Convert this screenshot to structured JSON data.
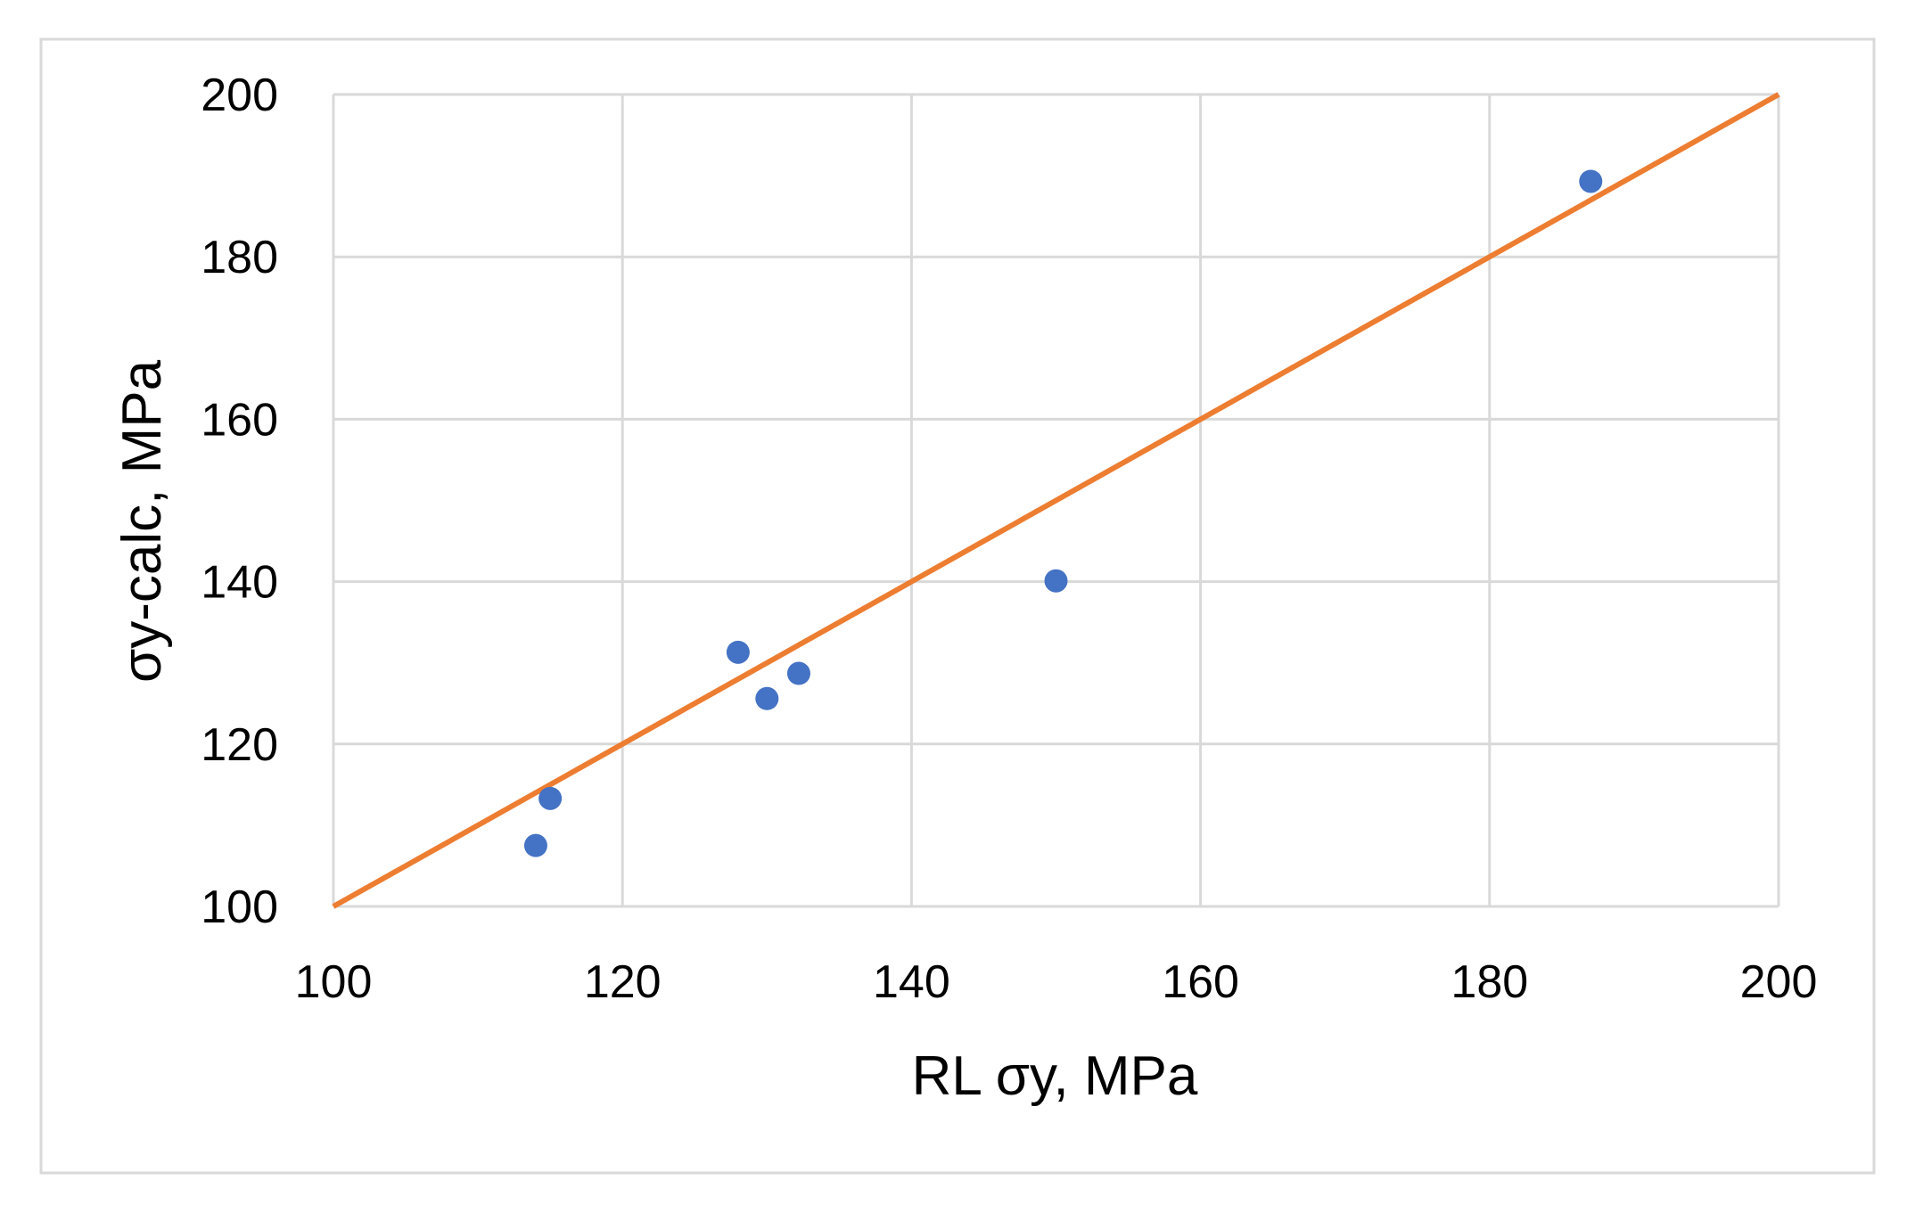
{
  "chart_data": {
    "type": "scatter",
    "title": "",
    "xlabel": "RL σy, MPa",
    "ylabel": "σy-calc, MPa",
    "xlim": [
      100,
      200
    ],
    "ylim": [
      100,
      200
    ],
    "x_ticks": [
      100,
      120,
      140,
      160,
      180,
      200
    ],
    "y_ticks": [
      100,
      120,
      140,
      160,
      180,
      200
    ],
    "grid": true,
    "legend": "none",
    "series": [
      {
        "type": "scatter",
        "color": "#4472C4",
        "points": [
          {
            "x": 114,
            "y": 107.5
          },
          {
            "x": 115,
            "y": 113.3
          },
          {
            "x": 128,
            "y": 131.3
          },
          {
            "x": 130,
            "y": 125.6
          },
          {
            "x": 132.2,
            "y": 128.7
          },
          {
            "x": 150,
            "y": 140.1
          },
          {
            "x": 187,
            "y": 189.3
          }
        ]
      },
      {
        "type": "line",
        "color": "#ED7D31",
        "points": [
          {
            "x": 100,
            "y": 100
          },
          {
            "x": 200,
            "y": 200
          }
        ]
      }
    ],
    "colors": {
      "grid": "#D9D9D9",
      "frame": "#D9D9D9",
      "points": "#4472C4",
      "line": "#ED7D31"
    }
  }
}
